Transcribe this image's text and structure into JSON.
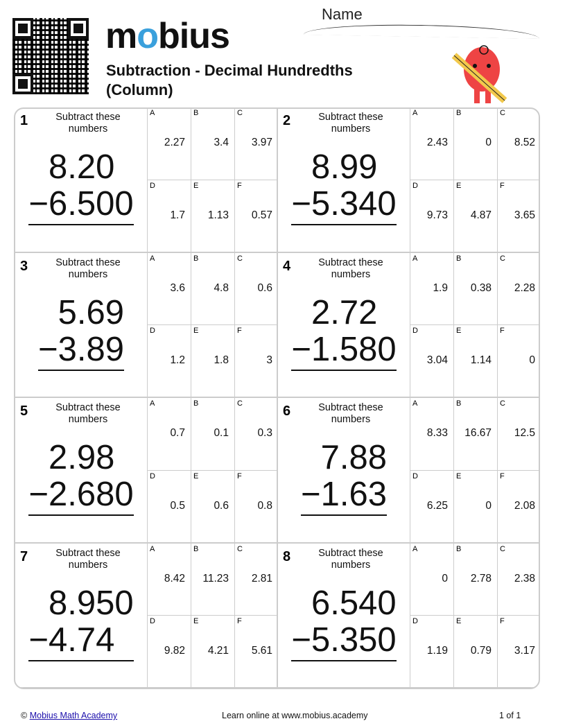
{
  "header": {
    "logo": "mobius",
    "title": "Subtraction - Decimal Hundredths (Column)",
    "name_label": "Name"
  },
  "instruction": "Subtract these numbers",
  "problems": [
    {
      "n": "1",
      "top": [
        "",
        "8",
        ".20"
      ],
      "bottom": [
        "−",
        "6",
        ".500"
      ],
      "answers": [
        "2.27",
        "3.4",
        "3.97",
        "1.7",
        "1.13",
        "0.57"
      ]
    },
    {
      "n": "2",
      "top": [
        "",
        "8",
        ".99"
      ],
      "bottom": [
        "−",
        "5",
        ".340"
      ],
      "answers": [
        "2.43",
        "0",
        "8.52",
        "9.73",
        "4.87",
        "3.65"
      ]
    },
    {
      "n": "3",
      "top": [
        "",
        "5",
        ".69"
      ],
      "bottom": [
        "−",
        "3",
        ".89"
      ],
      "answers": [
        "3.6",
        "4.8",
        "0.6",
        "1.2",
        "1.8",
        "3"
      ]
    },
    {
      "n": "4",
      "top": [
        "",
        "2",
        ".72"
      ],
      "bottom": [
        "−",
        "1",
        ".580"
      ],
      "answers": [
        "1.9",
        "0.38",
        "2.28",
        "3.04",
        "1.14",
        "0"
      ]
    },
    {
      "n": "5",
      "top": [
        "",
        "2",
        ".98"
      ],
      "bottom": [
        "−",
        "2",
        ".680"
      ],
      "answers": [
        "0.7",
        "0.1",
        "0.3",
        "0.5",
        "0.6",
        "0.8"
      ]
    },
    {
      "n": "6",
      "top": [
        "",
        "7",
        ".88"
      ],
      "bottom": [
        "−",
        "1",
        ".63"
      ],
      "answers": [
        "8.33",
        "16.67",
        "12.5",
        "6.25",
        "0",
        "2.08"
      ]
    },
    {
      "n": "7",
      "top": [
        "",
        "8",
        ".950"
      ],
      "bottom": [
        "−",
        "4",
        ".74"
      ],
      "answers": [
        "8.42",
        "11.23",
        "2.81",
        "9.82",
        "4.21",
        "5.61"
      ]
    },
    {
      "n": "8",
      "top": [
        "",
        "6",
        ".540"
      ],
      "bottom": [
        "−",
        "5",
        ".350"
      ],
      "answers": [
        "0",
        "2.78",
        "2.38",
        "1.19",
        "0.79",
        "3.17"
      ]
    }
  ],
  "letters": [
    "A",
    "B",
    "C",
    "D",
    "E",
    "F"
  ],
  "footer": {
    "copyright": "©",
    "link": "Mobius Math Academy",
    "center": "Learn online at www.mobius.academy",
    "page": "1 of 1"
  }
}
